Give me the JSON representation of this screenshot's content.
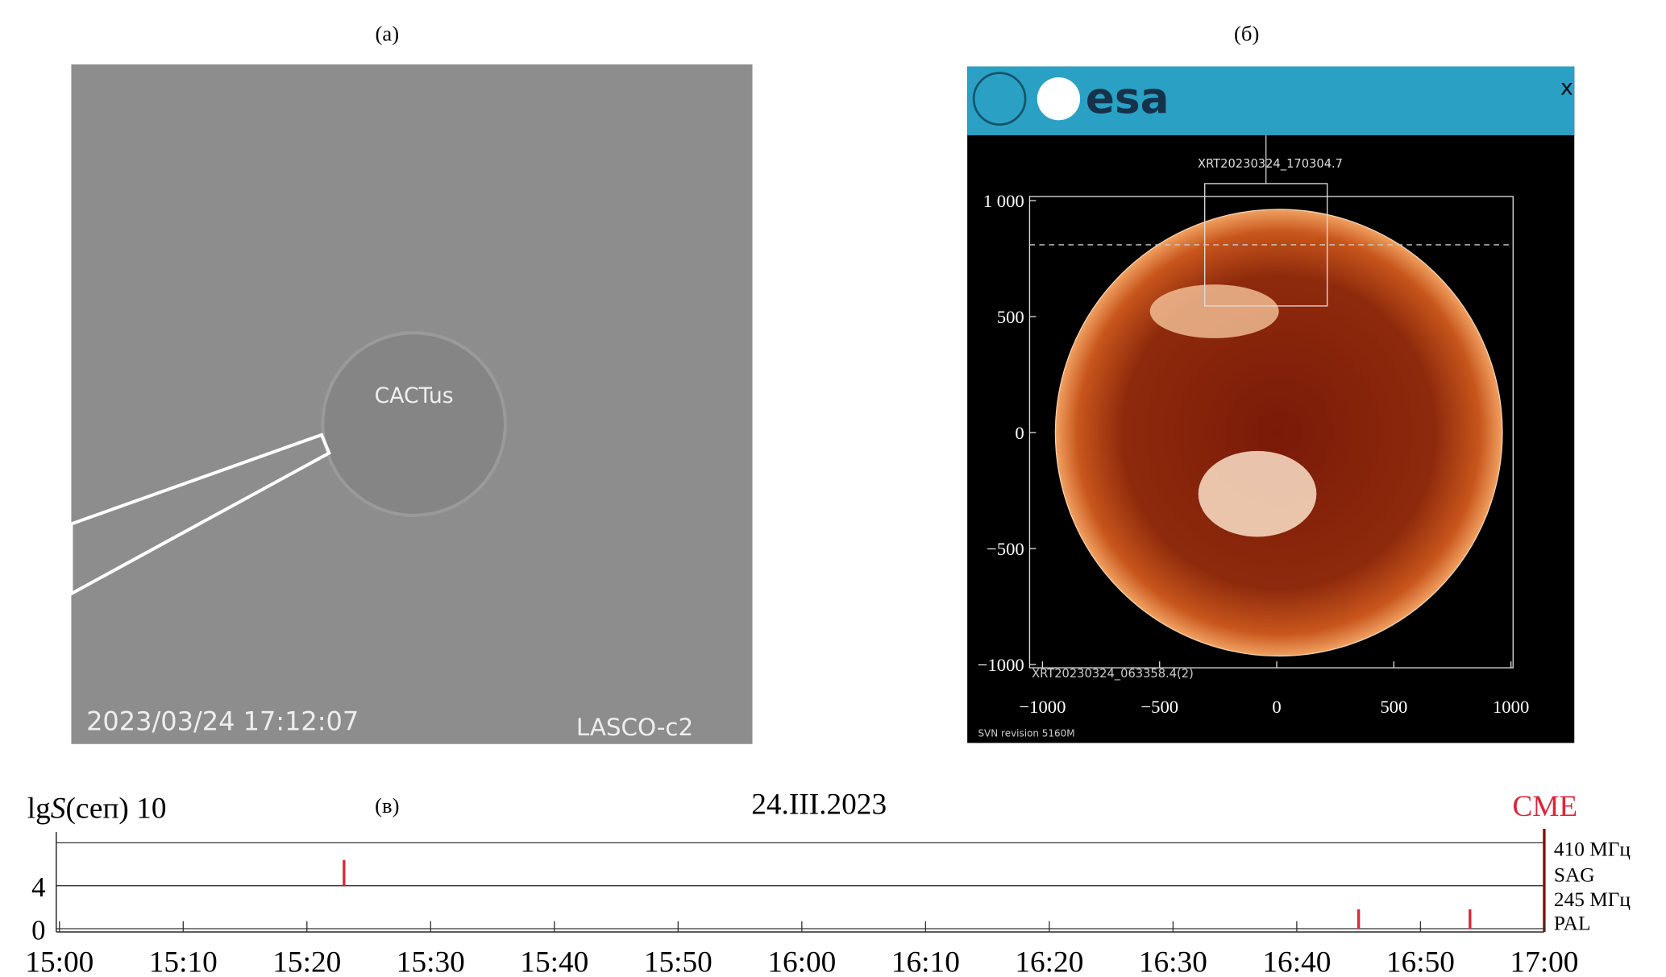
{
  "panel_a": {
    "label": "(a)",
    "watermark": "CACTus",
    "timestamp": "2023/03/24 17:12:07",
    "instrument": "LASCO-c2"
  },
  "panel_b": {
    "label": "(б)",
    "logo": "esa",
    "close": "x",
    "image_title": "XRT20230324_170304.7",
    "image_footer": "XRT20230324_063358.4(2)",
    "revision": "SVN revision 5160M",
    "xlim": [
      -1055,
      1009
    ],
    "ylim": [
      -1014,
      1018
    ],
    "xticks": [
      {
        "value": -1000,
        "label": "−1000"
      },
      {
        "value": -500,
        "label": "−500"
      },
      0,
      500,
      1000
    ],
    "yticks": [
      {
        "value": 1000,
        "label": "1 000"
      },
      500,
      0,
      {
        "value": -500,
        "label": "−500"
      },
      {
        "value": -1000,
        "label": "−1000"
      }
    ]
  },
  "panel_c": {
    "label": "(в)",
    "chart_data": {
      "type": "event",
      "title": "24.III.2023",
      "y_label": [
        "lg",
        "S",
        "(сеп) 10"
      ],
      "marker": "CME",
      "channel_labels": [
        "410 МГц",
        "SAG",
        "245 МГц",
        "PAL"
      ],
      "xlim": [
        "15:00",
        "17:00"
      ],
      "xticks": [
        "15:00",
        "15:10",
        "15:20",
        "15:30",
        "15:40",
        "15:50",
        "16:00",
        "16:10",
        "16:20",
        "16:30",
        "16:40",
        "16:50",
        "17:00"
      ],
      "ylim": [
        0,
        8
      ],
      "yticks": [
        0,
        4
      ],
      "color": "#d8283a",
      "events": [
        {
          "x": "15:23",
          "low": 4,
          "high": 6.4
        },
        {
          "x": "16:45",
          "low": 0,
          "high": 1.8
        },
        {
          "x": "16:54",
          "low": 0,
          "high": 1.8
        }
      ]
    }
  }
}
